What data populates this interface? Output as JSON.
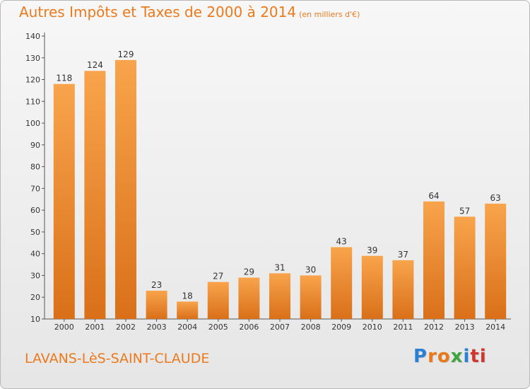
{
  "header": {
    "title": "Autres Impôts et Taxes de 2000 à 2014",
    "unit": "(en milliers d'€)"
  },
  "footer": {
    "town": "LAVANS-LèS-SAINT-CLAUDE",
    "logo_letters": [
      "P",
      "r",
      "o",
      "x",
      "i",
      "ti"
    ]
  },
  "colors": {
    "bar_light": "#f8a44c",
    "bar_dark": "#d97019",
    "accent": "#ec7a1c",
    "axis": "#555555"
  },
  "chart_data": {
    "type": "bar",
    "title": "Autres Impôts et Taxes de 2000 à 2014",
    "subtitle": "(en milliers d'€)",
    "xlabel": "",
    "ylabel": "",
    "categories": [
      "2000",
      "2001",
      "2002",
      "2003",
      "2004",
      "2005",
      "2006",
      "2007",
      "2008",
      "2009",
      "2010",
      "2011",
      "2012",
      "2013",
      "2014"
    ],
    "values": [
      118,
      124,
      129,
      23,
      18,
      27,
      29,
      31,
      30,
      43,
      39,
      37,
      64,
      57,
      63
    ],
    "ylim": [
      10,
      140
    ],
    "yticks": [
      10,
      20,
      30,
      40,
      50,
      60,
      70,
      80,
      90,
      100,
      110,
      120,
      130,
      140
    ],
    "grid": false,
    "legend": "none",
    "data_labels": true
  }
}
